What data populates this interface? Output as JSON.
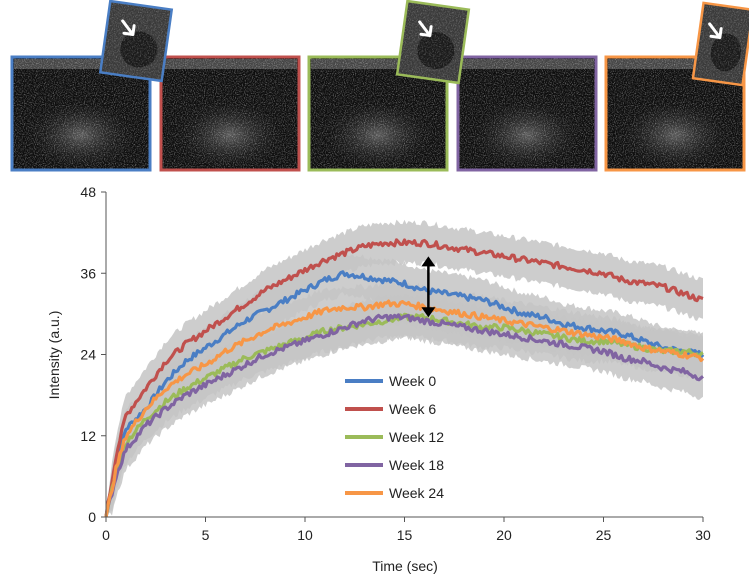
{
  "chart_data": {
    "type": "line",
    "title": "",
    "xlabel": "Time (sec)",
    "ylabel": "Intensity (a.u.)",
    "xlim": [
      0,
      30
    ],
    "ylim": [
      0,
      48
    ],
    "xticks": [
      "0",
      "5",
      "10",
      "15",
      "20",
      "25",
      "30"
    ],
    "yticks": [
      "0",
      "12",
      "24",
      "36",
      "48"
    ],
    "grid": false,
    "legend_position": "bottom-center",
    "error_band": "gray",
    "x": [
      0,
      0.5,
      1,
      2,
      3,
      4,
      5,
      6,
      7,
      8,
      9,
      10,
      11,
      12,
      13,
      14,
      15,
      16,
      17,
      18,
      19,
      20,
      21,
      22,
      23,
      24,
      25,
      26,
      27,
      28,
      29,
      30
    ],
    "series": [
      {
        "name": "Week 0",
        "color": "#4a7ec4",
        "values": [
          0,
          8,
          13,
          16,
          20,
          23,
          25,
          27,
          29,
          30.5,
          32,
          33.5,
          35,
          36,
          35.5,
          35,
          34.5,
          33.5,
          33,
          32.5,
          32,
          31,
          30,
          29.5,
          28.5,
          28,
          27.5,
          27,
          26,
          25,
          24.5,
          24
        ],
        "band": 3
      },
      {
        "name": "Week 6",
        "color": "#c0504d",
        "values": [
          0,
          9,
          15,
          19,
          23,
          25.5,
          27.5,
          29.5,
          31.5,
          33.5,
          35,
          36.5,
          38,
          39,
          40,
          40.5,
          40.5,
          40.5,
          40,
          39.5,
          39,
          38.5,
          38,
          37.5,
          37,
          36.5,
          36,
          35,
          34.5,
          34,
          33,
          32
        ],
        "band": 3
      },
      {
        "name": "Week 12",
        "color": "#9bbb59",
        "values": [
          0,
          7,
          11,
          14.5,
          17,
          19,
          20.5,
          22,
          23.5,
          24.5,
          25.5,
          26.5,
          27.5,
          28,
          28.5,
          29,
          29.5,
          29.5,
          29,
          28.5,
          28,
          28,
          27.5,
          27,
          26.5,
          26,
          26,
          25.5,
          25,
          24.5,
          24.5,
          24
        ],
        "band": 3
      },
      {
        "name": "Week 18",
        "color": "#8064a2",
        "values": [
          0,
          6,
          10,
          13.5,
          16,
          18,
          19.5,
          21,
          22.5,
          24,
          25,
          26,
          27,
          28,
          29,
          29.5,
          29.5,
          29,
          28.5,
          28,
          27.5,
          27,
          26.5,
          26,
          25.5,
          25,
          24.5,
          23.5,
          23,
          22,
          21.5,
          20.5
        ],
        "band": 3
      },
      {
        "name": "Week 24",
        "color": "#f79646",
        "values": [
          0,
          7,
          12,
          16,
          19,
          21,
          22.5,
          24.5,
          26,
          27.5,
          28.5,
          29.5,
          30.5,
          31,
          31,
          31.5,
          31.5,
          31,
          30.5,
          30,
          29.5,
          29,
          28.5,
          28,
          27.5,
          27,
          26.5,
          26,
          25,
          24.5,
          24,
          23.5
        ],
        "band": 3
      }
    ],
    "annotation": {
      "type": "double-arrow",
      "x": 16.2,
      "y_from": 29.5,
      "y_to": 38.5,
      "color": "#000000"
    },
    "thumbnails": [
      {
        "name": "week-0-scan",
        "frame_color": "#4a7ec4"
      },
      {
        "name": "week-6-scan",
        "frame_color": "#c0504d"
      },
      {
        "name": "week-12-scan",
        "frame_color": "#9bbb59"
      },
      {
        "name": "week-18-scan",
        "frame_color": "#8064a2"
      },
      {
        "name": "week-24-scan",
        "frame_color": "#f79646"
      }
    ],
    "insets": [
      {
        "name": "week-0-lesion-inset",
        "frame_color": "#4a7ec4"
      },
      {
        "name": "week-12-lesion-inset",
        "frame_color": "#9bbb59"
      },
      {
        "name": "week-24-lesion-inset",
        "frame_color": "#f79646"
      }
    ]
  }
}
